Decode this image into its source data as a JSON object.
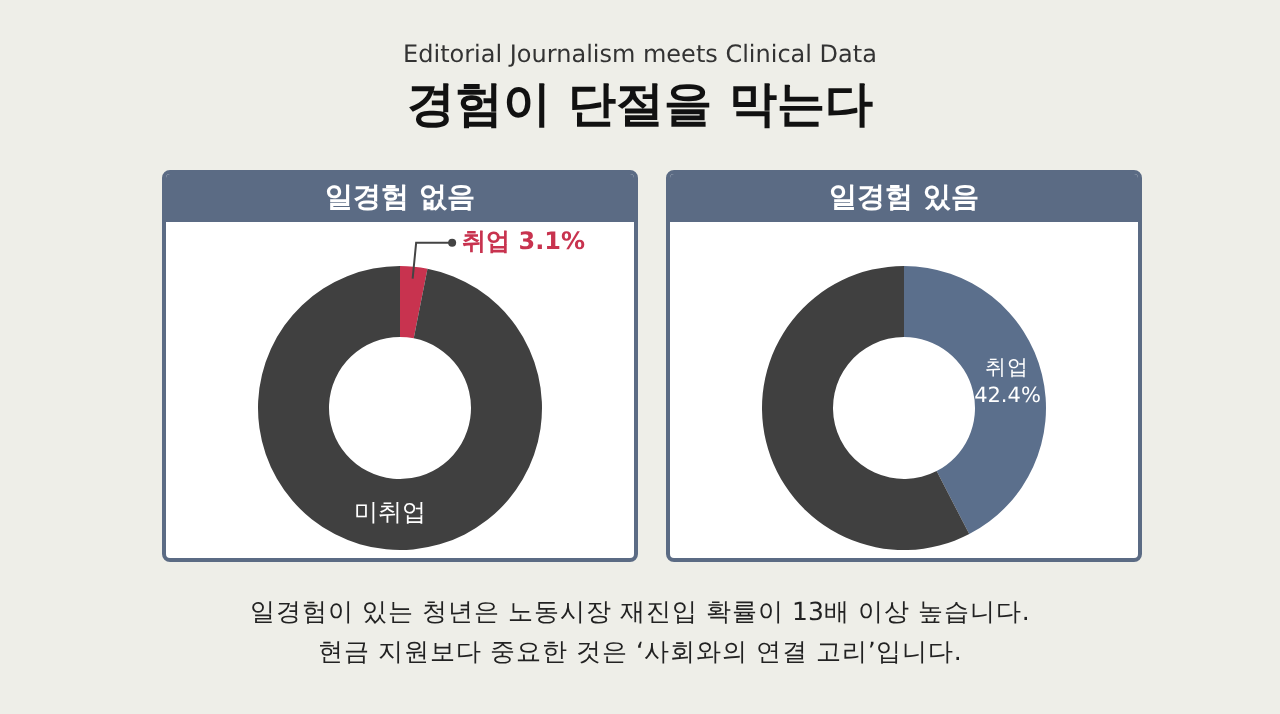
{
  "chart_data": [
    {
      "type": "other",
      "subtitle": "Editorial Journalism meets Clinical Data",
      "title": "경험이 단절을 막는다",
      "annotations": [
        "일경험이 있는 청년은 노동시장 재진입 확률이 13배 이상 높습니다.",
        "현금 지원보다 중요한 것은 ‘사회와의 연결 고리’입니다."
      ]
    },
    {
      "type": "donut",
      "title": "일경험 없음",
      "categories": [
        "취업",
        "미취업"
      ],
      "values": [
        3.1,
        96.9
      ],
      "colors": [
        "#c8334f",
        "#404040"
      ],
      "value_labels": [
        "3.1%",
        null
      ]
    },
    {
      "type": "donut",
      "title": "일경험 있음",
      "categories": [
        "취업",
        null
      ],
      "values": [
        42.4,
        57.6
      ],
      "colors": [
        "#5b6f8c",
        "#404040"
      ],
      "value_labels": [
        "42.4%",
        null
      ]
    }
  ]
}
